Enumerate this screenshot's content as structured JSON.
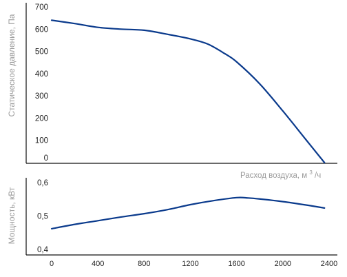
{
  "chart_data": [
    {
      "type": "line",
      "ylabel": "Статическое давление, Па",
      "xlabel": "Расход воздуха, м",
      "xlabel_unit_sup": "3",
      "xlabel_unit_tail": "/ч",
      "xlim": [
        0,
        2400
      ],
      "ylim": [
        0,
        700
      ],
      "yticks": [
        "700",
        "600",
        "500",
        "400",
        "300",
        "200",
        "100",
        "0"
      ],
      "ytick_values": [
        700,
        600,
        500,
        400,
        300,
        200,
        100,
        0
      ],
      "grid": false,
      "series": [
        {
          "color": "#0a3a8c",
          "x": [
            0,
            200,
            400,
            600,
            800,
            1000,
            1200,
            1350,
            1500,
            1600,
            1800,
            2000,
            2200,
            2360
          ],
          "y": [
            640,
            625,
            608,
            600,
            595,
            577,
            556,
            533,
            489,
            453,
            354,
            232,
            103,
            0
          ]
        }
      ]
    },
    {
      "type": "line",
      "ylabel": "Мощность, кВт",
      "xlim": [
        0,
        2400
      ],
      "ylim": [
        0.4,
        0.6
      ],
      "yticks": [
        "0,6",
        "0,5",
        "0,4"
      ],
      "ytick_values": [
        0.6,
        0.5,
        0.4
      ],
      "xticks": [
        "0",
        "400",
        "800",
        "1200",
        "1600",
        "2000",
        "2400"
      ],
      "xtick_values": [
        0,
        400,
        800,
        1200,
        1600,
        2000,
        2400
      ],
      "grid": false,
      "series": [
        {
          "color": "#0a3a8c",
          "x": [
            0,
            200,
            400,
            600,
            800,
            1000,
            1200,
            1400,
            1600,
            1700,
            1800,
            2000,
            2200,
            2360
          ],
          "y": [
            0.462,
            0.475,
            0.486,
            0.497,
            0.507,
            0.519,
            0.534,
            0.546,
            0.555,
            0.554,
            0.551,
            0.543,
            0.533,
            0.524
          ]
        }
      ]
    }
  ]
}
